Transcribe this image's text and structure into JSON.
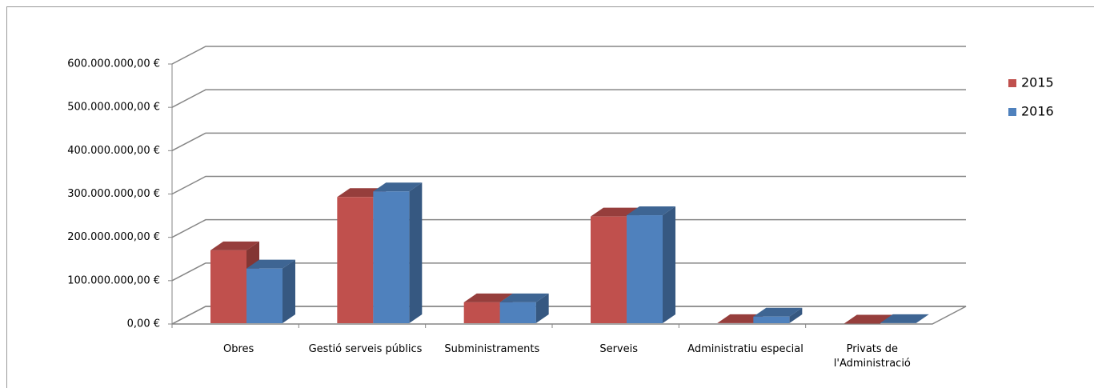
{
  "chart_data": {
    "type": "bar3d",
    "categories": [
      "Obres",
      "Gestió serveis públics",
      "Subministraments",
      "Serveis",
      "Administratiu especial",
      "Privats de l'Administració"
    ],
    "series": [
      {
        "name": "2015",
        "color": "#c0504d",
        "values": [
          170000000,
          293000000,
          50000000,
          248000000,
          2000000,
          1000000
        ]
      },
      {
        "name": "2016",
        "color": "#4f81bd",
        "values": [
          128000000,
          306000000,
          50000000,
          251000000,
          17000000,
          2000000
        ]
      }
    ],
    "ylim": [
      0,
      600000000
    ],
    "yticks": [
      {
        "value": 0,
        "label": "0,00 €"
      },
      {
        "value": 100000000,
        "label": "100.000.000,00 €"
      },
      {
        "value": 200000000,
        "label": "200.000.000,00 €"
      },
      {
        "value": 300000000,
        "label": "300.000.000,00 €"
      },
      {
        "value": 400000000,
        "label": "400.000.000,00 €"
      },
      {
        "value": 500000000,
        "label": "500.000.000,00 €"
      },
      {
        "value": 600000000,
        "label": "600.000.000,00 €"
      }
    ],
    "grid": true,
    "legend": "right"
  }
}
